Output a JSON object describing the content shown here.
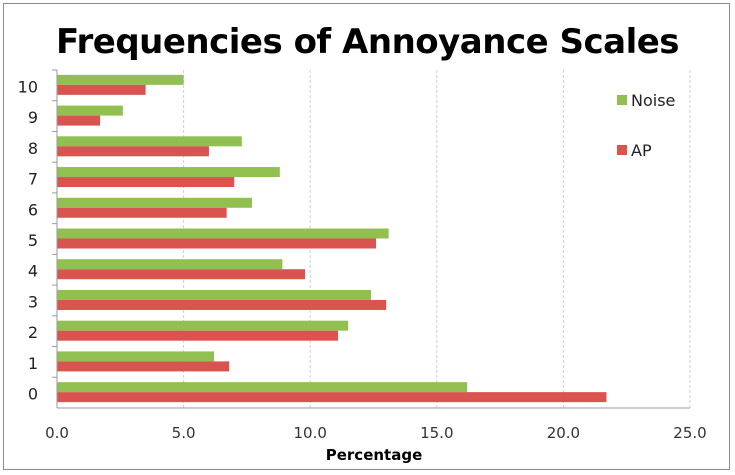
{
  "chart_data": {
    "type": "bar",
    "orientation": "horizontal",
    "title": "Frequencies of Annoyance Scales",
    "xlabel": "Percentage",
    "ylabel": "",
    "xlim": [
      0,
      25
    ],
    "xticks": [
      "0.0",
      "5.0",
      "10.0",
      "15.0",
      "20.0",
      "25.0"
    ],
    "categories": [
      "0",
      "1",
      "2",
      "3",
      "4",
      "5",
      "6",
      "7",
      "8",
      "9",
      "10"
    ],
    "series": [
      {
        "name": "Noise",
        "color": "#92c050",
        "values": [
          16.2,
          6.2,
          11.5,
          12.4,
          8.9,
          13.1,
          7.7,
          8.8,
          7.3,
          2.6,
          5.0
        ]
      },
      {
        "name": "AP",
        "color": "#d9534f",
        "values": [
          21.7,
          6.8,
          11.1,
          13.0,
          9.8,
          12.6,
          6.7,
          7.0,
          6.0,
          1.7,
          3.5
        ]
      }
    ],
    "grid": "vertical",
    "legend_position": "right"
  }
}
